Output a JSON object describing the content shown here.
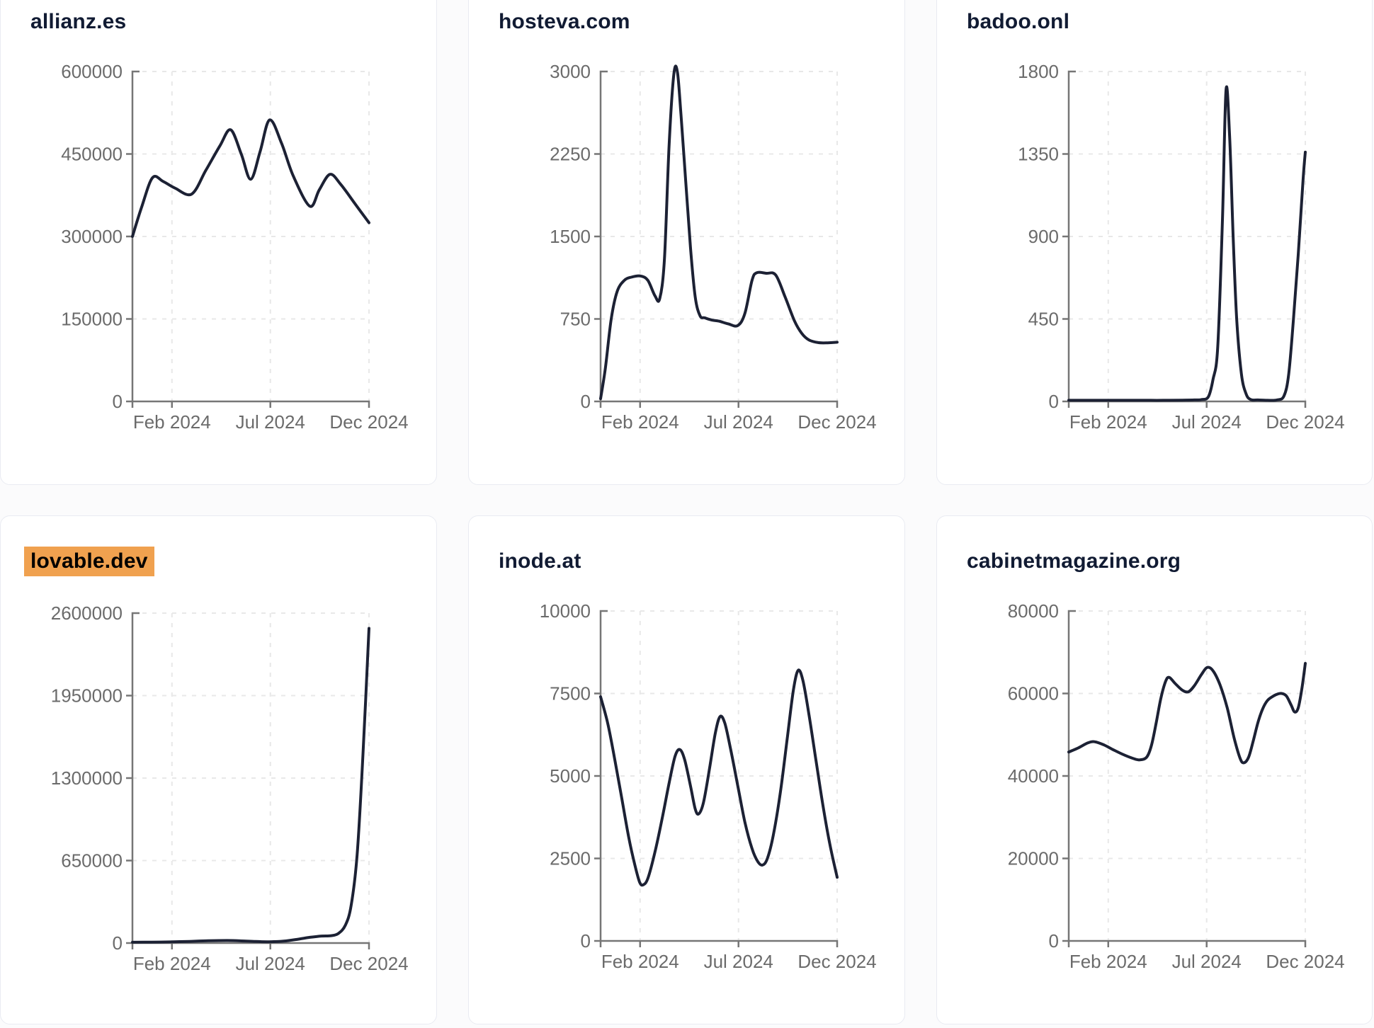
{
  "page": {
    "background": "#fbfbfc"
  },
  "style": {
    "card_bg": "#ffffff",
    "card_border": "#e9ebf2",
    "line_color": "#1c2134",
    "axis_color": "#767676",
    "tick_label_color": "#6b6b6b",
    "grid_color": "#e8e8e8",
    "title_color": "#111b33",
    "highlight_bg": "#f0a14f",
    "highlight_text": "#000000"
  },
  "x_axis": {
    "tick_labels": [
      "Feb 2024",
      "Jul 2024",
      "Dec 2024"
    ],
    "tick_positions_pct": [
      16.7,
      58.3,
      100
    ]
  },
  "chart_data": [
    {
      "type": "line",
      "title": "allianz.es",
      "highlighted": false,
      "ylim": [
        0,
        600000
      ],
      "y_ticks": [
        0,
        150000,
        300000,
        450000,
        600000
      ],
      "x_tick_labels": [
        "Feb 2024",
        "Jul 2024",
        "Dec 2024"
      ],
      "grid": true,
      "points": [
        [
          0,
          300000
        ],
        [
          4,
          355000
        ],
        [
          8.5,
          407000
        ],
        [
          13,
          400000
        ],
        [
          18,
          388000
        ],
        [
          25,
          377000
        ],
        [
          31,
          420000
        ],
        [
          37,
          465000
        ],
        [
          41.5,
          494000
        ],
        [
          46,
          450000
        ],
        [
          50,
          404000
        ],
        [
          54,
          455000
        ],
        [
          58,
          512000
        ],
        [
          63,
          470000
        ],
        [
          68,
          410000
        ],
        [
          75,
          355000
        ],
        [
          79,
          385000
        ],
        [
          83.5,
          413000
        ],
        [
          88,
          395000
        ],
        [
          94,
          360000
        ],
        [
          100,
          325000
        ]
      ]
    },
    {
      "type": "line",
      "title": "hosteva.com",
      "highlighted": false,
      "ylim": [
        0,
        3000
      ],
      "y_ticks": [
        0,
        750,
        1500,
        2250,
        3000
      ],
      "x_tick_labels": [
        "Feb 2024",
        "Jul 2024",
        "Dec 2024"
      ],
      "grid": true,
      "points": [
        [
          0,
          25
        ],
        [
          2,
          300
        ],
        [
          4.5,
          750
        ],
        [
          7,
          1000
        ],
        [
          10,
          1100
        ],
        [
          13,
          1130
        ],
        [
          17,
          1140
        ],
        [
          20,
          1100
        ],
        [
          23,
          960
        ],
        [
          25,
          935
        ],
        [
          27,
          1300
        ],
        [
          29,
          2350
        ],
        [
          31,
          2980
        ],
        [
          32.5,
          2990
        ],
        [
          34,
          2600
        ],
        [
          36,
          2000
        ],
        [
          38,
          1400
        ],
        [
          40,
          950
        ],
        [
          42,
          780
        ],
        [
          44,
          760
        ],
        [
          47,
          740
        ],
        [
          50,
          730
        ],
        [
          54,
          705
        ],
        [
          58,
          690
        ],
        [
          61,
          800
        ],
        [
          64,
          1100
        ],
        [
          66,
          1170
        ],
        [
          70,
          1165
        ],
        [
          74,
          1150
        ],
        [
          78,
          950
        ],
        [
          82,
          730
        ],
        [
          85,
          620
        ],
        [
          88,
          560
        ],
        [
          92,
          535
        ],
        [
          96,
          533
        ],
        [
          100,
          538
        ]
      ]
    },
    {
      "type": "line",
      "title": "badoo.onl",
      "highlighted": false,
      "ylim": [
        0,
        1800
      ],
      "y_ticks": [
        0,
        450,
        900,
        1350,
        1800
      ],
      "x_tick_labels": [
        "Feb 2024",
        "Jul 2024",
        "Dec 2024"
      ],
      "grid": true,
      "points": [
        [
          0,
          6
        ],
        [
          8,
          6
        ],
        [
          16,
          6
        ],
        [
          24,
          6
        ],
        [
          32,
          6
        ],
        [
          40,
          6
        ],
        [
          48,
          7
        ],
        [
          53,
          8
        ],
        [
          56,
          10
        ],
        [
          59,
          25
        ],
        [
          61,
          120
        ],
        [
          63,
          300
        ],
        [
          65,
          1000
        ],
        [
          66.5,
          1700
        ],
        [
          68,
          1450
        ],
        [
          69.5,
          900
        ],
        [
          71,
          450
        ],
        [
          73,
          150
        ],
        [
          75,
          40
        ],
        [
          77,
          10
        ],
        [
          80,
          8
        ],
        [
          84,
          6
        ],
        [
          88,
          8
        ],
        [
          91,
          30
        ],
        [
          93,
          150
        ],
        [
          95,
          450
        ],
        [
          97,
          800
        ],
        [
          99,
          1200
        ],
        [
          100,
          1360
        ]
      ]
    },
    {
      "type": "line",
      "title": "lovable.dev",
      "highlighted": true,
      "ylim": [
        0,
        2600000
      ],
      "y_ticks": [
        0,
        650000,
        1300000,
        1950000,
        2600000
      ],
      "x_tick_labels": [
        "Feb 2024",
        "Jul 2024",
        "Dec 2024"
      ],
      "grid": true,
      "points": [
        [
          0,
          6000
        ],
        [
          8,
          7000
        ],
        [
          16,
          9000
        ],
        [
          24,
          13000
        ],
        [
          32,
          18000
        ],
        [
          40,
          20000
        ],
        [
          46,
          17000
        ],
        [
          52,
          12000
        ],
        [
          58,
          10000
        ],
        [
          64,
          15000
        ],
        [
          70,
          30000
        ],
        [
          75,
          45000
        ],
        [
          80,
          55000
        ],
        [
          84,
          58000
        ],
        [
          87,
          75000
        ],
        [
          90,
          140000
        ],
        [
          92.5,
          300000
        ],
        [
          95,
          700000
        ],
        [
          97.5,
          1500000
        ],
        [
          100,
          2480000
        ]
      ]
    },
    {
      "type": "line",
      "title": "inode.at",
      "highlighted": false,
      "ylim": [
        0,
        10000
      ],
      "y_ticks": [
        0,
        2500,
        5000,
        7500,
        10000
      ],
      "x_tick_labels": [
        "Feb 2024",
        "Jul 2024",
        "Dec 2024"
      ],
      "grid": true,
      "points": [
        [
          0,
          7400
        ],
        [
          3,
          6600
        ],
        [
          6,
          5500
        ],
        [
          9,
          4300
        ],
        [
          12,
          3100
        ],
        [
          14.5,
          2300
        ],
        [
          16.5,
          1780
        ],
        [
          18,
          1700
        ],
        [
          20,
          1900
        ],
        [
          23,
          2700
        ],
        [
          26,
          3700
        ],
        [
          29,
          4800
        ],
        [
          31.5,
          5600
        ],
        [
          33.5,
          5800
        ],
        [
          35.5,
          5500
        ],
        [
          38,
          4700
        ],
        [
          40,
          4000
        ],
        [
          41.5,
          3850
        ],
        [
          43.5,
          4200
        ],
        [
          46,
          5200
        ],
        [
          48.5,
          6300
        ],
        [
          50.5,
          6800
        ],
        [
          52.5,
          6600
        ],
        [
          55,
          5800
        ],
        [
          58,
          4700
        ],
        [
          61,
          3600
        ],
        [
          64,
          2800
        ],
        [
          66.5,
          2400
        ],
        [
          68.5,
          2300
        ],
        [
          70.5,
          2500
        ],
        [
          73,
          3200
        ],
        [
          76,
          4500
        ],
        [
          79,
          6200
        ],
        [
          81.5,
          7600
        ],
        [
          83.5,
          8200
        ],
        [
          85.5,
          7900
        ],
        [
          88,
          6900
        ],
        [
          91,
          5500
        ],
        [
          94,
          4100
        ],
        [
          97,
          2900
        ],
        [
          100,
          1930
        ]
      ]
    },
    {
      "type": "line",
      "title": "cabinetmagazine.org",
      "highlighted": false,
      "ylim": [
        0,
        80000
      ],
      "y_ticks": [
        0,
        20000,
        40000,
        60000,
        80000
      ],
      "x_tick_labels": [
        "Feb 2024",
        "Jul 2024",
        "Dec 2024"
      ],
      "grid": true,
      "points": [
        [
          0,
          45800
        ],
        [
          4,
          46800
        ],
        [
          8,
          48000
        ],
        [
          11,
          48300
        ],
        [
          15,
          47500
        ],
        [
          19,
          46300
        ],
        [
          23,
          45200
        ],
        [
          27,
          44300
        ],
        [
          30,
          43900
        ],
        [
          33,
          44600
        ],
        [
          35,
          47500
        ],
        [
          37,
          53000
        ],
        [
          39,
          59000
        ],
        [
          41,
          63000
        ],
        [
          42.5,
          63900
        ],
        [
          45,
          62400
        ],
        [
          48,
          60800
        ],
        [
          50.5,
          60400
        ],
        [
          53,
          61800
        ],
        [
          56,
          64500
        ],
        [
          58.5,
          66300
        ],
        [
          61,
          65500
        ],
        [
          64,
          62000
        ],
        [
          67,
          56500
        ],
        [
          70,
          49000
        ],
        [
          72.5,
          44200
        ],
        [
          74,
          43200
        ],
        [
          76,
          44500
        ],
        [
          78,
          48500
        ],
        [
          80,
          53000
        ],
        [
          82,
          56300
        ],
        [
          84,
          58300
        ],
        [
          86,
          59200
        ],
        [
          88,
          59800
        ],
        [
          90,
          60000
        ],
        [
          92,
          59400
        ],
        [
          94,
          57200
        ],
        [
          95.5,
          55500
        ],
        [
          97,
          56500
        ],
        [
          98.5,
          61000
        ],
        [
          100,
          67300
        ]
      ]
    }
  ]
}
